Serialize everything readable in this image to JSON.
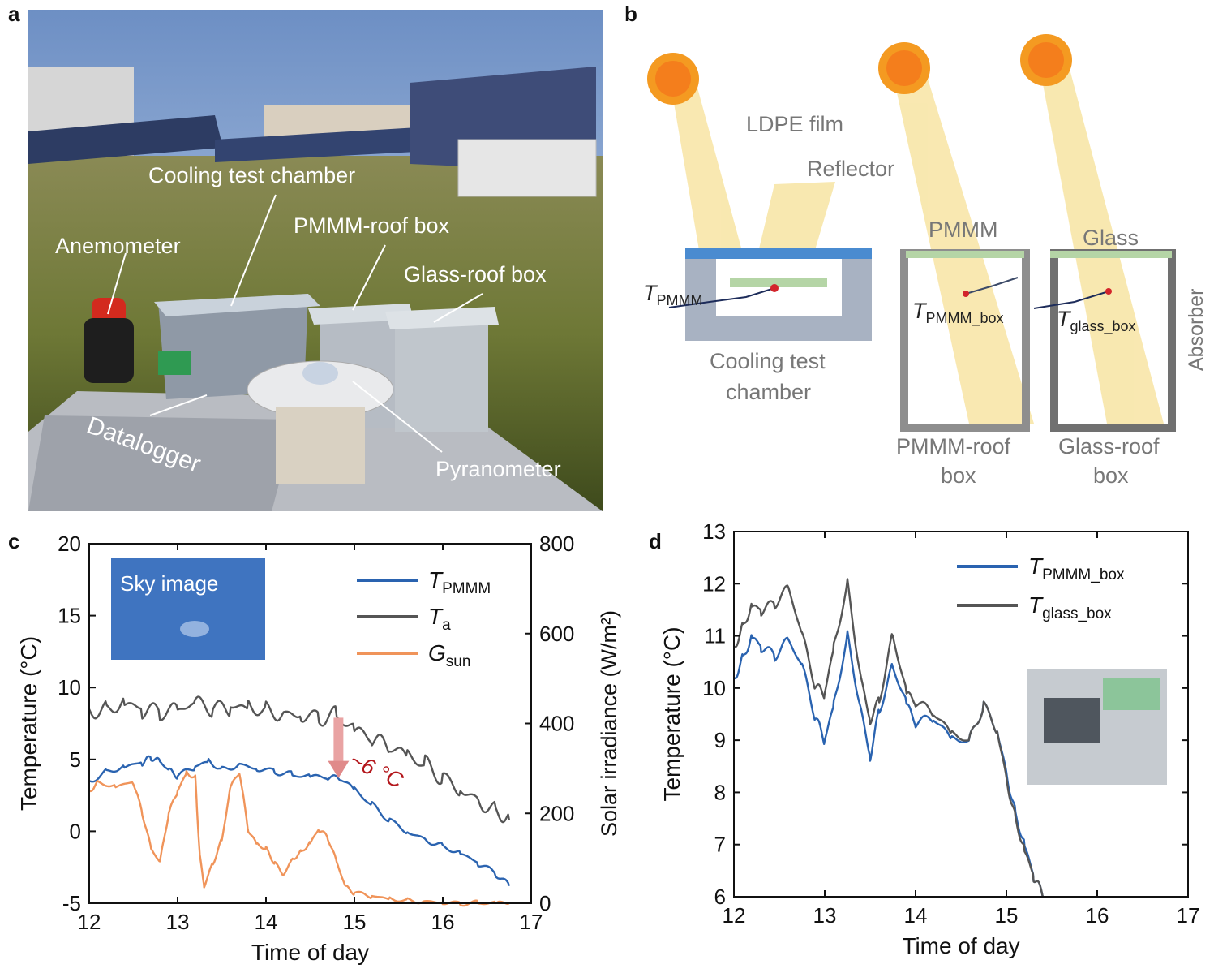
{
  "panels": {
    "a": {
      "letter": "a",
      "labels": {
        "cooling_chamber": "Cooling test chamber",
        "pmmm_box": "PMMM-roof box",
        "anemometer": "Anemometer",
        "glass_box": "Glass-roof box",
        "datalogger": "Datalogger",
        "pyranometer": "Pyranometer"
      }
    },
    "b": {
      "letter": "b",
      "labels": {
        "ldpe": "LDPE film",
        "reflector": "Reflector",
        "pmmm": "PMMM",
        "glass": "Glass",
        "absorber": "Absorber",
        "t_pmmm_main": "T",
        "t_pmmm_sub": "PMMM",
        "t_pmmm_box_main": "T",
        "t_pmmm_box_sub": "PMMM_box",
        "t_glass_box_main": "T",
        "t_glass_box_sub": "glass_box",
        "chamber_l1": "Cooling test",
        "chamber_l2": "chamber",
        "pmmm_roof_l1": "PMMM-roof",
        "pmmm_roof_l2": "box",
        "glass_roof_l1": "Glass-roof",
        "glass_roof_l2": "box"
      }
    },
    "c": {
      "letter": "c",
      "inset_label": "Sky image",
      "annotation": "~6 °C"
    },
    "d": {
      "letter": "d"
    }
  },
  "colors": {
    "blue": "#2a63b0",
    "gray": "#555555",
    "orange": "#f0945a",
    "sun": "#f4a21f",
    "beam": "#f8e6a8",
    "annot": "#b3161b"
  },
  "chart_data": [
    {
      "type": "line",
      "xlabel": "Time of day",
      "ylabel": "Temperature (°C)",
      "ylabel_right": "Solar irradiance (W/m²)",
      "xlim": [
        12,
        17
      ],
      "ylim": [
        -5,
        20
      ],
      "ylim_right": [
        0,
        800
      ],
      "xticks": [
        "12",
        "13",
        "14",
        "15",
        "16",
        "17"
      ],
      "yticks": [
        "-5",
        "0",
        "5",
        "10",
        "15",
        "20"
      ],
      "yticks_right": [
        "0",
        "200",
        "400",
        "600",
        "800"
      ],
      "legend_position": "top-right",
      "series": [
        {
          "name_main": "T",
          "name_sub": "PMMM",
          "color": "#2a63b0",
          "axis": "left",
          "x": [
            12.0,
            12.2,
            12.4,
            12.6,
            12.7,
            12.8,
            12.9,
            13.0,
            13.2,
            13.35,
            13.5,
            13.7,
            13.9,
            14.1,
            14.3,
            14.5,
            14.7,
            14.85,
            15.0,
            15.2,
            15.4,
            15.6,
            15.8,
            16.0,
            16.2,
            16.4,
            16.6,
            16.75
          ],
          "y": [
            3.5,
            4.2,
            4.5,
            4.8,
            5.1,
            4.8,
            4.2,
            3.8,
            4.5,
            4.9,
            4.3,
            4.7,
            4.4,
            4.2,
            3.9,
            3.8,
            3.7,
            3.6,
            2.9,
            1.8,
            0.8,
            0.0,
            -0.5,
            -1.0,
            -1.5,
            -2.2,
            -3.0,
            -3.8
          ]
        },
        {
          "name_main": "T",
          "name_sub": "a",
          "color": "#555555",
          "axis": "left",
          "x": [
            12.0,
            12.2,
            12.4,
            12.6,
            12.8,
            13.0,
            13.2,
            13.4,
            13.6,
            13.8,
            14.0,
            14.2,
            14.4,
            14.6,
            14.8,
            15.0,
            15.2,
            15.4,
            15.6,
            15.8,
            16.0,
            16.2,
            16.4,
            16.6,
            16.75
          ],
          "y": [
            8.5,
            8.6,
            9.0,
            8.5,
            8.2,
            8.3,
            8.8,
            8.4,
            8.6,
            8.7,
            8.5,
            8.3,
            8.2,
            8.0,
            8.0,
            7.0,
            6.3,
            5.7,
            5.2,
            4.6,
            3.8,
            3.0,
            2.3,
            1.5,
            0.8
          ]
        },
        {
          "name_main": "G",
          "name_sub": "sun",
          "color": "#f0945a",
          "axis": "right",
          "x": [
            12.0,
            12.1,
            12.3,
            12.5,
            12.6,
            12.7,
            12.8,
            12.9,
            13.0,
            13.1,
            13.2,
            13.25,
            13.3,
            13.4,
            13.5,
            13.6,
            13.7,
            13.8,
            13.9,
            14.0,
            14.1,
            14.2,
            14.3,
            14.4,
            14.5,
            14.6,
            14.7,
            14.8,
            14.9,
            15.0,
            15.2,
            15.4,
            15.6,
            15.8,
            16.0,
            16.2,
            16.4,
            16.6,
            16.75
          ],
          "y": [
            250,
            270,
            260,
            270,
            200,
            120,
            90,
            200,
            250,
            290,
            280,
            110,
            40,
            90,
            140,
            260,
            290,
            160,
            130,
            120,
            90,
            65,
            100,
            115,
            135,
            165,
            145,
            90,
            35,
            22,
            16,
            10,
            7,
            5,
            3,
            0,
            0,
            0,
            0
          ]
        }
      ]
    },
    {
      "type": "line",
      "xlabel": "Time of day",
      "ylabel": "Temperature (°C)",
      "xlim": [
        12,
        17
      ],
      "ylim": [
        6,
        13
      ],
      "xticks": [
        "12",
        "13",
        "14",
        "15",
        "16",
        "17"
      ],
      "yticks": [
        "6",
        "7",
        "8",
        "9",
        "10",
        "11",
        "12",
        "13"
      ],
      "legend_position": "top-right",
      "series": [
        {
          "name_main": "T",
          "name_sub": "PMMM_box",
          "color": "#2a63b0",
          "x": [
            12.0,
            12.1,
            12.2,
            12.3,
            12.45,
            12.6,
            12.75,
            12.9,
            13.0,
            13.1,
            13.25,
            13.4,
            13.5,
            13.6,
            13.75,
            13.9,
            14.0,
            14.2,
            14.4,
            14.6,
            14.75,
            14.9,
            15.0,
            15.1,
            15.2,
            15.3,
            15.4
          ],
          "y": [
            10.2,
            10.6,
            11.0,
            10.8,
            10.6,
            10.9,
            10.4,
            9.4,
            9.0,
            9.7,
            11.0,
            9.6,
            8.7,
            9.6,
            10.4,
            9.7,
            9.3,
            9.4,
            9.0,
            9.0,
            9.7,
            9.2,
            8.4,
            7.6,
            7.0,
            6.4,
            6.0
          ]
        },
        {
          "name_main": "T",
          "name_sub": "glass_box",
          "color": "#555555",
          "x": [
            12.0,
            12.1,
            12.2,
            12.3,
            12.45,
            12.6,
            12.75,
            12.9,
            13.0,
            13.1,
            13.25,
            13.4,
            13.5,
            13.6,
            13.75,
            13.9,
            14.0,
            14.2,
            14.4,
            14.6,
            14.75,
            14.9,
            15.0,
            15.1,
            15.2,
            15.3,
            15.4
          ],
          "y": [
            10.8,
            11.2,
            11.6,
            11.5,
            11.6,
            11.9,
            11.0,
            10.0,
            9.9,
            10.8,
            12.0,
            10.2,
            9.4,
            9.8,
            11.0,
            9.9,
            9.7,
            9.5,
            9.1,
            9.0,
            9.7,
            9.2,
            8.3,
            7.5,
            6.9,
            6.4,
            6.0
          ]
        }
      ]
    }
  ]
}
